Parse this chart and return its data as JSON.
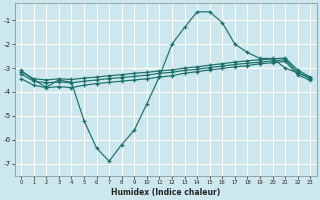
{
  "xlabel": "Humidex (Indice chaleur)",
  "ylabel": "",
  "bg_color": "#cce8ee",
  "grid_color": "#ffffff",
  "line_color": "#1a6e6a",
  "xlim": [
    -0.5,
    23.5
  ],
  "ylim": [
    -7.5,
    -0.3
  ],
  "xticks": [
    0,
    1,
    2,
    3,
    4,
    5,
    6,
    7,
    8,
    9,
    10,
    11,
    12,
    13,
    14,
    15,
    16,
    17,
    18,
    19,
    20,
    21,
    22,
    23
  ],
  "yticks": [
    -7,
    -6,
    -5,
    -4,
    -3,
    -2,
    -1
  ],
  "line1_x": [
    0,
    1,
    2,
    3,
    4,
    5,
    6,
    7,
    8,
    9,
    10,
    11,
    12,
    13,
    14,
    15,
    16,
    17,
    18,
    19,
    20,
    21,
    22,
    23
  ],
  "line1_y": [
    -3.1,
    -3.5,
    -3.8,
    -3.5,
    -3.6,
    -5.2,
    -6.35,
    -6.9,
    -6.2,
    -5.6,
    -4.5,
    -3.35,
    -2.0,
    -1.3,
    -0.65,
    -0.65,
    -1.1,
    -2.0,
    -2.35,
    -2.6,
    -2.6,
    -3.0,
    -3.2,
    -3.4
  ],
  "line2_x": [
    0,
    1,
    2,
    3,
    4,
    5,
    6,
    7,
    8,
    9,
    10,
    11,
    12,
    13,
    14,
    15,
    16,
    17,
    18,
    19,
    20,
    21,
    22,
    23
  ],
  "line2_y": [
    -3.15,
    -3.45,
    -3.5,
    -3.45,
    -3.48,
    -3.42,
    -3.38,
    -3.32,
    -3.28,
    -3.22,
    -3.18,
    -3.12,
    -3.08,
    -3.0,
    -2.95,
    -2.88,
    -2.82,
    -2.75,
    -2.7,
    -2.65,
    -2.62,
    -2.58,
    -3.08,
    -3.38
  ],
  "line3_x": [
    0,
    1,
    2,
    3,
    4,
    5,
    6,
    7,
    8,
    9,
    10,
    11,
    12,
    13,
    14,
    15,
    16,
    17,
    18,
    19,
    20,
    21,
    22,
    23
  ],
  "line3_y": [
    -3.25,
    -3.55,
    -3.62,
    -3.58,
    -3.62,
    -3.55,
    -3.5,
    -3.44,
    -3.4,
    -3.35,
    -3.3,
    -3.22,
    -3.18,
    -3.1,
    -3.05,
    -2.98,
    -2.92,
    -2.85,
    -2.8,
    -2.75,
    -2.7,
    -2.65,
    -3.18,
    -3.45
  ],
  "line4_x": [
    0,
    1,
    2,
    3,
    4,
    5,
    6,
    7,
    8,
    9,
    10,
    11,
    12,
    13,
    14,
    15,
    16,
    17,
    18,
    19,
    20,
    21,
    22,
    23
  ],
  "line4_y": [
    -3.45,
    -3.72,
    -3.82,
    -3.78,
    -3.82,
    -3.72,
    -3.65,
    -3.6,
    -3.55,
    -3.5,
    -3.45,
    -3.38,
    -3.32,
    -3.22,
    -3.15,
    -3.08,
    -3.02,
    -2.95,
    -2.9,
    -2.82,
    -2.78,
    -2.72,
    -3.28,
    -3.52
  ]
}
